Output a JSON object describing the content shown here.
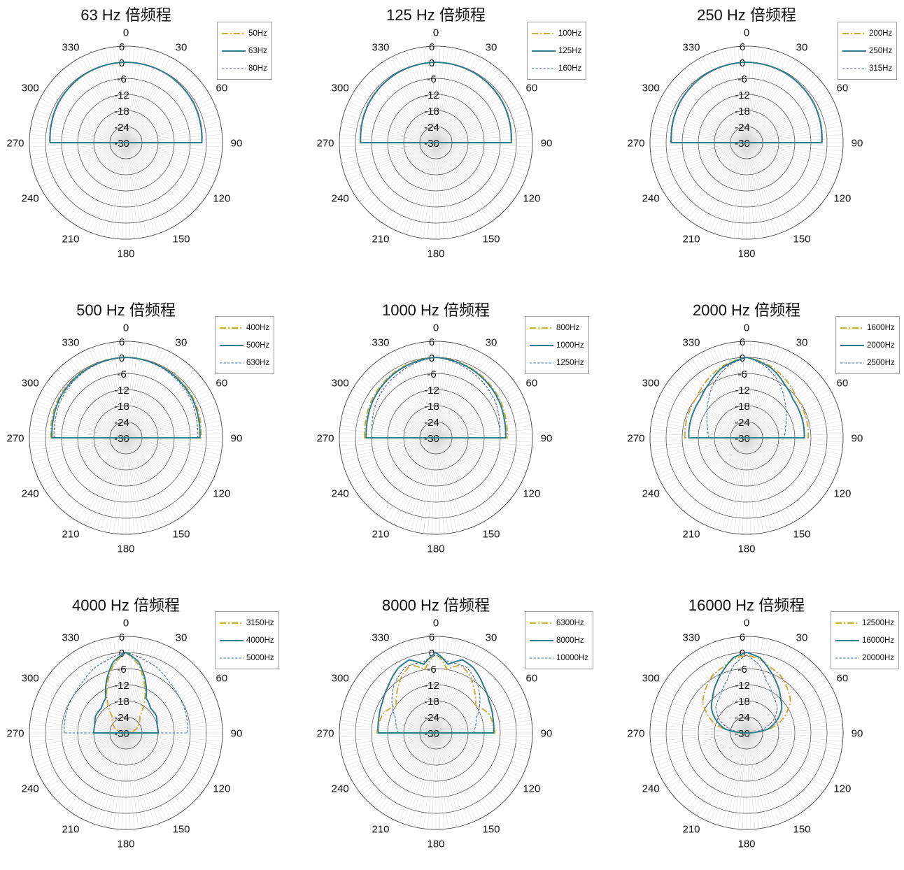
{
  "colors": {
    "low": "#c8ad3c",
    "center": "#2f7d8c",
    "high": "#4f6a9e",
    "grid": "#d4d4d4",
    "ring": "#444444"
  },
  "chart_data": [
    {
      "type": "polar",
      "title": "63 Hz 倍频程",
      "r_ticks": [
        "6",
        "0",
        "-6",
        "-12",
        "-18",
        "-24",
        "-30"
      ],
      "rlim": [
        -30,
        6
      ],
      "theta_ticks": [
        "0",
        "30",
        "60",
        "90",
        "120",
        "150",
        "180",
        "210",
        "240",
        "270",
        "300",
        "330"
      ],
      "legend": [
        "50Hz",
        "63Hz",
        "80Hz"
      ],
      "series": [
        {
          "name": "50Hz",
          "style": "dashdot",
          "color_key": "low",
          "theta": [
            0,
            30,
            60,
            75,
            85,
            90
          ],
          "r": [
            0,
            -0.2,
            -0.7,
            -1.2,
            -1.5,
            -1.6
          ]
        },
        {
          "name": "63Hz",
          "style": "solid",
          "color_key": "center",
          "theta": [
            0,
            30,
            60,
            75,
            85,
            90
          ],
          "r": [
            0,
            -0.2,
            -0.8,
            -1.3,
            -1.6,
            -1.7
          ]
        },
        {
          "name": "80Hz",
          "style": "dashed",
          "color_key": "high",
          "theta": [
            0,
            30,
            60,
            75,
            85,
            90
          ],
          "r": [
            0,
            -0.3,
            -0.9,
            -1.4,
            -1.7,
            -1.8
          ]
        }
      ]
    },
    {
      "type": "polar",
      "title": "125 Hz 倍频程",
      "r_ticks": [
        "6",
        "0",
        "-6",
        "-12",
        "-18",
        "-24",
        "-30"
      ],
      "rlim": [
        -30,
        6
      ],
      "theta_ticks": [
        "0",
        "30",
        "60",
        "90",
        "120",
        "150",
        "180",
        "210",
        "240",
        "270",
        "300",
        "330"
      ],
      "legend": [
        "100Hz",
        "125Hz",
        "160Hz"
      ],
      "series": [
        {
          "name": "100Hz",
          "style": "dashdot",
          "color_key": "low",
          "theta": [
            0,
            30,
            60,
            75,
            85,
            90
          ],
          "r": [
            0,
            -0.3,
            -0.9,
            -1.4,
            -1.7,
            -1.8
          ]
        },
        {
          "name": "125Hz",
          "style": "solid",
          "color_key": "center",
          "theta": [
            0,
            30,
            60,
            75,
            85,
            90
          ],
          "r": [
            0,
            -0.3,
            -1,
            -1.5,
            -1.8,
            -1.9
          ]
        },
        {
          "name": "160Hz",
          "style": "dashed",
          "color_key": "high",
          "theta": [
            0,
            30,
            60,
            75,
            85,
            90
          ],
          "r": [
            0,
            -0.4,
            -1.1,
            -1.6,
            -1.9,
            -2
          ]
        }
      ]
    },
    {
      "type": "polar",
      "title": "250 Hz 倍频程",
      "r_ticks": [
        "6",
        "0",
        "-6",
        "-12",
        "-18",
        "-24",
        "-30"
      ],
      "rlim": [
        -30,
        6
      ],
      "theta_ticks": [
        "0",
        "30",
        "60",
        "90",
        "120",
        "150",
        "180",
        "210",
        "240",
        "270",
        "300",
        "330"
      ],
      "legend": [
        "200Hz",
        "250Hz",
        "315Hz"
      ],
      "series": [
        {
          "name": "200Hz",
          "style": "dashdot",
          "color_key": "low",
          "theta": [
            0,
            30,
            60,
            75,
            85,
            90
          ],
          "r": [
            0,
            -0.3,
            -0.9,
            -1.4,
            -1.7,
            -1.8
          ]
        },
        {
          "name": "250Hz",
          "style": "solid",
          "color_key": "center",
          "theta": [
            0,
            30,
            60,
            75,
            85,
            90
          ],
          "r": [
            0,
            -0.3,
            -1,
            -1.5,
            -1.8,
            -1.9
          ]
        },
        {
          "name": "315Hz",
          "style": "dashed",
          "color_key": "high",
          "theta": [
            0,
            30,
            60,
            75,
            85,
            90
          ],
          "r": [
            0,
            -0.4,
            -1.1,
            -1.6,
            -2,
            -2.1
          ]
        }
      ]
    },
    {
      "type": "polar",
      "title": "500 Hz 倍频程",
      "r_ticks": [
        "6",
        "0",
        "-6",
        "-12",
        "-18",
        "-24",
        "-30"
      ],
      "rlim": [
        -30,
        6
      ],
      "theta_ticks": [
        "0",
        "30",
        "60",
        "90",
        "120",
        "150",
        "180",
        "210",
        "240",
        "270",
        "300",
        "330"
      ],
      "legend": [
        "400Hz",
        "500Hz",
        "630Hz"
      ],
      "series": [
        {
          "name": "400Hz",
          "style": "dashdot",
          "color_key": "low",
          "theta": [
            0,
            30,
            60,
            75,
            85,
            90
          ],
          "r": [
            0,
            -0.3,
            -0.9,
            -1.5,
            -1.9,
            -2
          ]
        },
        {
          "name": "500Hz",
          "style": "solid",
          "color_key": "center",
          "theta": [
            0,
            30,
            60,
            75,
            85,
            90
          ],
          "r": [
            0,
            -0.5,
            -1.3,
            -2,
            -2.3,
            -2.4
          ]
        },
        {
          "name": "630Hz",
          "style": "dashed",
          "color_key": "high",
          "theta": [
            0,
            30,
            60,
            75,
            85,
            90
          ],
          "r": [
            0,
            -0.8,
            -2,
            -2.8,
            -3.1,
            -3.2
          ]
        }
      ]
    },
    {
      "type": "polar",
      "title": "1000 Hz 倍频程",
      "r_ticks": [
        "6",
        "0",
        "-6",
        "-12",
        "-18",
        "-24",
        "-30"
      ],
      "rlim": [
        -30,
        6
      ],
      "theta_ticks": [
        "0",
        "30",
        "60",
        "90",
        "120",
        "150",
        "180",
        "210",
        "240",
        "270",
        "300",
        "330"
      ],
      "legend": [
        "800Hz",
        "1000Hz",
        "1250Hz"
      ],
      "series": [
        {
          "name": "800Hz",
          "style": "dashdot",
          "color_key": "low",
          "theta": [
            0,
            30,
            60,
            75,
            85,
            90
          ],
          "r": [
            0,
            -1,
            -2.3,
            -3,
            -3.3,
            -3.4
          ]
        },
        {
          "name": "1000Hz",
          "style": "solid",
          "color_key": "center",
          "theta": [
            0,
            30,
            60,
            75,
            85,
            90
          ],
          "r": [
            0,
            -1.3,
            -2.8,
            -3.6,
            -3.9,
            -4
          ]
        },
        {
          "name": "1250Hz",
          "style": "dashed",
          "color_key": "high",
          "theta": [
            0,
            30,
            60,
            75,
            85,
            90
          ],
          "r": [
            0,
            -2.2,
            -4.2,
            -5.5,
            -6,
            -6.1
          ]
        }
      ]
    },
    {
      "type": "polar",
      "title": "2000 Hz 倍频程",
      "r_ticks": [
        "6",
        "0",
        "-6",
        "-12",
        "-18",
        "-24",
        "-30"
      ],
      "rlim": [
        -30,
        6
      ],
      "theta_ticks": [
        "0",
        "30",
        "60",
        "90",
        "120",
        "150",
        "180",
        "210",
        "240",
        "270",
        "300",
        "330"
      ],
      "legend": [
        "1600Hz",
        "2000Hz",
        "2500Hz"
      ],
      "series": [
        {
          "name": "1600Hz",
          "style": "dashdot",
          "color_key": "low",
          "theta": [
            0,
            20,
            35,
            50,
            65,
            80,
            90
          ],
          "r": [
            0,
            -2,
            -4,
            -6,
            -6.5,
            -6.8,
            -7
          ]
        },
        {
          "name": "2000Hz",
          "style": "solid",
          "color_key": "center",
          "theta": [
            0,
            20,
            35,
            50,
            65,
            80,
            90
          ],
          "r": [
            0,
            -2.5,
            -5.5,
            -7.5,
            -8,
            -8.3,
            -8.5
          ]
        },
        {
          "name": "2500Hz",
          "style": "dashed",
          "color_key": "high",
          "theta": [
            0,
            15,
            30,
            45,
            60,
            75,
            90
          ],
          "r": [
            0,
            -2.5,
            -6,
            -10,
            -13,
            -15,
            -16
          ]
        }
      ]
    },
    {
      "type": "polar",
      "title": "4000 Hz 倍频程",
      "r_ticks": [
        "6",
        "0",
        "-6",
        "-12",
        "-18",
        "-24",
        "-30"
      ],
      "rlim": [
        -30,
        6
      ],
      "theta_ticks": [
        "0",
        "30",
        "60",
        "90",
        "120",
        "150",
        "180",
        "210",
        "240",
        "270",
        "300",
        "330"
      ],
      "legend": [
        "3150Hz",
        "4000Hz",
        "5000Hz"
      ],
      "series": [
        {
          "name": "3150Hz",
          "style": "dashdot",
          "color_key": "low",
          "theta": [
            0,
            10,
            20,
            30,
            40,
            55,
            70,
            90
          ],
          "r": [
            0,
            -4,
            -10,
            -16,
            -22,
            -24,
            -26,
            -30
          ]
        },
        {
          "name": "4000Hz",
          "style": "solid",
          "color_key": "center",
          "theta": [
            0,
            10,
            20,
            30,
            45,
            60,
            75,
            90
          ],
          "r": [
            0,
            -3,
            -9,
            -15,
            -17,
            -17,
            -18,
            -18
          ]
        },
        {
          "name": "5000Hz",
          "style": "dashed",
          "color_key": "high",
          "theta": [
            0,
            15,
            25,
            40,
            55,
            70,
            80,
            90
          ],
          "r": [
            0,
            -2,
            -3,
            -5,
            -6,
            -6.5,
            -6.8,
            -7
          ]
        }
      ]
    },
    {
      "type": "polar",
      "title": "8000 Hz 倍频程",
      "r_ticks": [
        "6",
        "0",
        "-6",
        "-12",
        "-18",
        "-24",
        "-30"
      ],
      "rlim": [
        -30,
        6
      ],
      "theta_ticks": [
        "0",
        "30",
        "60",
        "90",
        "120",
        "150",
        "180",
        "210",
        "240",
        "270",
        "300",
        "330"
      ],
      "legend": [
        "6300Hz",
        "8000Hz",
        "10000Hz"
      ],
      "series": [
        {
          "name": "6300Hz",
          "style": "dashdot",
          "color_key": "low",
          "theta": [
            0,
            10,
            20,
            30,
            40,
            55,
            70,
            90
          ],
          "r": [
            0,
            -6,
            -3,
            -5,
            -8,
            -12,
            -9,
            -8
          ]
        },
        {
          "name": "8000Hz",
          "style": "solid",
          "color_key": "center",
          "theta": [
            0,
            10,
            20,
            30,
            45,
            60,
            75,
            90
          ],
          "r": [
            0,
            -4,
            -1,
            -2,
            -5,
            -7,
            -8,
            -8.5
          ]
        },
        {
          "name": "10000Hz",
          "style": "dashed",
          "color_key": "high",
          "theta": [
            0,
            10,
            25,
            40,
            55,
            70,
            90
          ],
          "r": [
            -1,
            -3,
            -3,
            -6,
            -10,
            -14,
            -16
          ]
        }
      ]
    },
    {
      "type": "polar",
      "title": "16000 Hz 倍频程",
      "r_ticks": [
        "6",
        "0",
        "-6",
        "-12",
        "-18",
        "-24",
        "-30"
      ],
      "rlim": [
        -30,
        6
      ],
      "theta_ticks": [
        "0",
        "30",
        "60",
        "90",
        "120",
        "150",
        "180",
        "210",
        "240",
        "270",
        "300",
        "330"
      ],
      "legend": [
        "12500Hz",
        "16000Hz",
        "20000Hz"
      ],
      "series": [
        {
          "name": "12500Hz",
          "style": "dashdot",
          "color_key": "low",
          "theta": [
            0,
            10,
            20,
            30,
            45,
            55,
            65,
            75,
            90
          ],
          "r": [
            -1,
            -2,
            -4,
            -5,
            -8,
            -10,
            -14,
            -18,
            -30
          ]
        },
        {
          "name": "16000Hz",
          "style": "solid",
          "color_key": "center",
          "theta": [
            0,
            10,
            20,
            30,
            45,
            55,
            65,
            80,
            90
          ],
          "r": [
            0,
            -1.5,
            -5,
            -8,
            -12,
            -14,
            -17,
            -22,
            -30
          ]
        },
        {
          "name": "20000Hz",
          "style": "dashed",
          "color_key": "high",
          "theta": [
            0,
            10,
            20,
            35,
            50,
            65,
            80,
            90
          ],
          "r": [
            -1,
            -4,
            -9,
            -13,
            -15,
            -19,
            -25,
            -30
          ]
        }
      ]
    }
  ]
}
